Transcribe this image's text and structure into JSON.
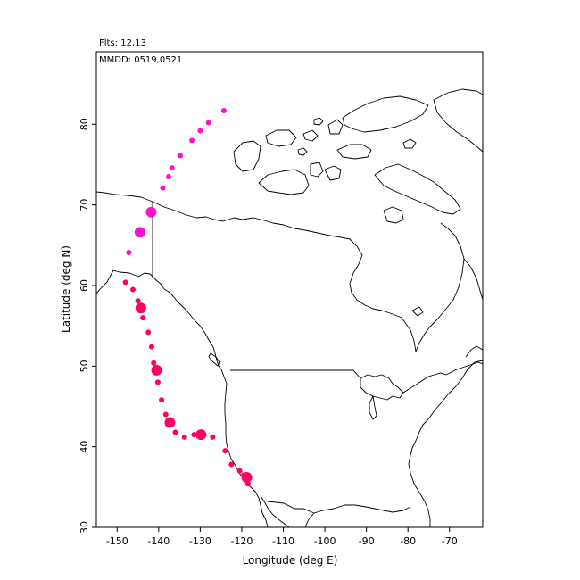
{
  "header": {
    "flights_label": "Flts: 12,13",
    "dates_label": "MMDD: 0519,0521"
  },
  "chart_data": {
    "type": "scatter",
    "title": "",
    "xlabel": "Longitude (deg E)",
    "ylabel": "Latitude (deg N)",
    "xlim": [
      -155,
      -62
    ],
    "ylim": [
      30,
      89
    ],
    "xticks": [
      -150,
      -140,
      -130,
      -120,
      -110,
      -100,
      -90,
      -80,
      -70
    ],
    "yticks": [
      30,
      40,
      50,
      60,
      70,
      80
    ],
    "xtick_labels": [
      "-150",
      "-140",
      "-130",
      "-120",
      "-110",
      "-100",
      "-90",
      "-80",
      "-70"
    ],
    "ytick_labels": [
      "30",
      "40",
      "50",
      "60",
      "70",
      "80"
    ],
    "grid": false,
    "basemap": "North America coastlines and country borders",
    "series": [
      {
        "color": "#ff11cc",
        "points": [
          {
            "x": -124.3,
            "y": 81.7,
            "size": "small"
          },
          {
            "x": -128.0,
            "y": 80.2,
            "size": "small"
          },
          {
            "x": -130.0,
            "y": 79.2,
            "size": "small"
          },
          {
            "x": -132.0,
            "y": 78.0,
            "size": "small"
          },
          {
            "x": -134.8,
            "y": 76.1,
            "size": "small"
          },
          {
            "x": -136.8,
            "y": 74.6,
            "size": "small"
          },
          {
            "x": -137.6,
            "y": 73.5,
            "size": "small"
          },
          {
            "x": -139.0,
            "y": 72.1,
            "size": "small"
          },
          {
            "x": -141.8,
            "y": 69.1,
            "size": "large"
          },
          {
            "x": -144.5,
            "y": 66.6,
            "size": "large"
          },
          {
            "x": -147.2,
            "y": 64.1,
            "size": "small"
          }
        ]
      },
      {
        "color": "#ff0066",
        "points": [
          {
            "x": -148.0,
            "y": 60.4,
            "size": "small"
          },
          {
            "x": -146.2,
            "y": 59.5,
            "size": "small"
          },
          {
            "x": -145.0,
            "y": 58.1,
            "size": "small"
          },
          {
            "x": -144.3,
            "y": 57.2,
            "size": "large"
          },
          {
            "x": -143.8,
            "y": 56.0,
            "size": "small"
          },
          {
            "x": -142.5,
            "y": 54.2,
            "size": "small"
          },
          {
            "x": -141.7,
            "y": 52.4,
            "size": "small"
          },
          {
            "x": -141.2,
            "y": 50.4,
            "size": "small"
          },
          {
            "x": -140.5,
            "y": 49.5,
            "size": "large"
          },
          {
            "x": -140.2,
            "y": 48.0,
            "size": "small"
          },
          {
            "x": -139.3,
            "y": 45.8,
            "size": "small"
          },
          {
            "x": -138.3,
            "y": 44.0,
            "size": "small"
          },
          {
            "x": -137.3,
            "y": 43.0,
            "size": "large"
          },
          {
            "x": -136.0,
            "y": 41.8,
            "size": "small"
          },
          {
            "x": -133.8,
            "y": 41.2,
            "size": "small"
          },
          {
            "x": -131.5,
            "y": 41.5,
            "size": "small"
          },
          {
            "x": -129.8,
            "y": 41.5,
            "size": "large"
          },
          {
            "x": -127.0,
            "y": 41.2,
            "size": "small"
          },
          {
            "x": -124.0,
            "y": 39.5,
            "size": "small"
          },
          {
            "x": -122.5,
            "y": 37.8,
            "size": "small"
          },
          {
            "x": -120.5,
            "y": 37.0,
            "size": "small"
          },
          {
            "x": -119.5,
            "y": 36.5,
            "size": "small"
          },
          {
            "x": -118.8,
            "y": 36.2,
            "size": "large"
          },
          {
            "x": -118.5,
            "y": 35.4,
            "size": "small"
          }
        ]
      }
    ]
  }
}
